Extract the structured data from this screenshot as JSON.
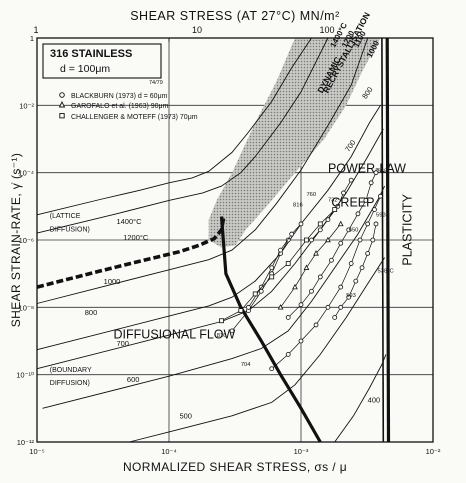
{
  "chart_data": {
    "type": "line",
    "title": "",
    "top_axis": {
      "label": "SHEAR STRESS (AT 27°C) MN/m²",
      "ticks": [
        "1",
        "10",
        "100"
      ]
    },
    "xlabel": "NORMALIZED SHEAR STRESS, σs / μ",
    "ylabel": "SHEAR STRAIN-RATE, γ̇ (s⁻¹)",
    "x_scale": "log",
    "y_scale": "log",
    "xlim": [
      1e-05,
      0.01
    ],
    "ylim": [
      1e-12,
      1
    ],
    "x_ticks": [
      {
        "value": 1e-05,
        "label": "10⁻⁵"
      },
      {
        "value": 0.0001,
        "label": "10⁻⁴"
      },
      {
        "value": 0.001,
        "label": "10⁻³"
      },
      {
        "value": 0.01,
        "label": "10⁻²"
      }
    ],
    "y_ticks": [
      {
        "value": 1,
        "label": "1"
      },
      {
        "value": 0.01,
        "label": "10⁻²"
      },
      {
        "value": 0.0001,
        "label": "10⁻⁴"
      },
      {
        "value": 1e-06,
        "label": "10⁻⁶"
      },
      {
        "value": 1e-08,
        "label": "10⁻⁸"
      },
      {
        "value": 1e-10,
        "label": "10⁻¹⁰"
      },
      {
        "value": 1e-12,
        "label": "10⁻¹²"
      }
    ],
    "material_box": {
      "name": "316 STAINLESS",
      "grain": "d = 100μm",
      "code": "74/79"
    },
    "legend": [
      {
        "symbol": "circle",
        "text": "BLACKBURN (1973) d = 60μm"
      },
      {
        "symbol": "triangle",
        "text": "GAROFALO et al. (1963) 90μm"
      },
      {
        "symbol": "square",
        "text": "CHALLENGER & MOTEFF (1973) 70μm"
      }
    ],
    "fields": [
      {
        "text": "POWER-LAW",
        "x": 0.0016,
        "y": 0.0001
      },
      {
        "text": "CREEP",
        "x": 0.0017,
        "y": 1e-05
      },
      {
        "text": "DIFFUSIONAL FLOW",
        "x": 3.8e-05,
        "y": 1.2e-09
      },
      {
        "text": "PLASTICITY",
        "x": 0.0069,
        "y": 2e-06
      },
      {
        "text": "DYNAMIC",
        "x": 0.00145,
        "y": 0.022
      },
      {
        "text": "RECRYSTALLISATION",
        "x": 0.0016,
        "y": 0.022
      }
    ],
    "regime_notes": [
      {
        "text": "(LATTICE",
        "x": 1.25e-05,
        "y": 4.5e-06
      },
      {
        "text": "DIFFUSION)",
        "x": 1.25e-05,
        "y": 1.8e-06
      },
      {
        "text": "(BOUNDARY",
        "x": 1.25e-05,
        "y": 1.2e-10
      },
      {
        "text": "DIFFUSION)",
        "x": 1.25e-05,
        "y": 5e-11
      }
    ],
    "isotherm_labels": [
      {
        "text": "1400°C",
        "x": 4e-05,
        "y": 3e-06
      },
      {
        "text": "1200°C",
        "x": 4.5e-05,
        "y": 1e-06
      },
      {
        "text": "1000",
        "x": 3.2e-05,
        "y": 5e-08
      },
      {
        "text": "800",
        "x": 2.3e-05,
        "y": 6e-09
      },
      {
        "text": "700",
        "x": 4e-05,
        "y": 7e-10
      },
      {
        "text": "600",
        "x": 4.8e-05,
        "y": 6e-11
      },
      {
        "text": "500",
        "x": 0.00012,
        "y": 5e-12
      },
      {
        "text": "400",
        "x": 0.0032,
        "y": 1.5e-11
      },
      {
        "text": "700",
        "x": 0.0023,
        "y": 0.0004
      },
      {
        "text": "800",
        "x": 0.0031,
        "y": 0.015
      },
      {
        "text": "1000",
        "x": 0.0034,
        "y": 0.25
      },
      {
        "text": "1100",
        "x": 0.0027,
        "y": 0.5
      },
      {
        "text": "1200",
        "x": 0.0022,
        "y": 0.5
      },
      {
        "text": "1400°C",
        "x": 0.0018,
        "y": 0.5
      }
    ],
    "point_labels": [
      {
        "text": "649",
        "x": 0.0038,
        "y": 0.0001
      },
      {
        "text": "593",
        "x": 0.0037,
        "y": 5e-06
      },
      {
        "text": "538°C",
        "x": 0.0038,
        "y": 1.1e-07
      },
      {
        "text": "593",
        "x": 0.0022,
        "y": 2e-08
      },
      {
        "text": "650",
        "x": 0.0023,
        "y": 1.8e-06
      },
      {
        "text": "732",
        "x": 0.0016,
        "y": 1.4e-05
      },
      {
        "text": "760",
        "x": 0.0011,
        "y": 2e-05
      },
      {
        "text": "816",
        "x": 0.00087,
        "y": 1e-05
      },
      {
        "text": "816",
        "x": 0.00023,
        "y": 1.3e-09
      },
      {
        "text": "704",
        "x": 0.00035,
        "y": 1.8e-10
      }
    ],
    "series": [
      {
        "style": "thin",
        "points": [
          [
            1e-05,
            5.6e-06
          ],
          [
            3e-05,
            1.6e-05
          ],
          [
            6e-05,
            3e-05
          ],
          [
            0.0001,
            5e-05
          ],
          [
            0.00015,
            7e-05
          ],
          [
            0.0002,
            0.00011
          ],
          [
            0.0003,
            0.0004
          ],
          [
            0.0004,
            0.0016
          ],
          [
            0.0006,
            0.013
          ],
          [
            0.00085,
            0.13
          ],
          [
            0.0012,
            1
          ]
        ]
      },
      {
        "style": "thin",
        "points": [
          [
            1e-05,
            1.6e-06
          ],
          [
            4e-05,
            6e-06
          ],
          [
            0.0001,
            1.5e-05
          ],
          [
            0.00018,
            2.5e-05
          ],
          [
            0.00025,
            4e-05
          ],
          [
            0.00035,
            0.0001
          ],
          [
            0.00045,
            0.0003
          ],
          [
            0.0007,
            0.003
          ],
          [
            0.001,
            0.025
          ],
          [
            0.0016,
            1
          ]
        ]
      },
      {
        "style": "thin",
        "points": [
          [
            1e-05,
            1.3e-08
          ],
          [
            0.0001,
            1.3e-07
          ],
          [
            0.0002,
            2.6e-07
          ],
          [
            0.0003,
            5e-07
          ],
          [
            0.00045,
            2e-06
          ],
          [
            0.00065,
            1.2e-05
          ],
          [
            0.001,
            0.00012
          ],
          [
            0.0016,
            0.0025
          ],
          [
            0.0024,
            0.04
          ],
          [
            0.0032,
            1
          ]
        ]
      },
      {
        "style": "thin",
        "points": [
          [
            1e-05,
            5.5e-10
          ],
          [
            0.0001,
            5.5e-09
          ],
          [
            0.0002,
            1.1e-08
          ],
          [
            0.0003,
            2e-08
          ],
          [
            0.00045,
            6e-08
          ],
          [
            0.0007,
            4e-07
          ],
          [
            0.001,
            3e-06
          ],
          [
            0.0016,
            3e-05
          ],
          [
            0.0024,
            0.0003
          ],
          [
            0.0033,
            0.003
          ],
          [
            0.004,
            0.01
          ]
        ]
      },
      {
        "style": "thin",
        "points": [
          [
            1e-05,
            1.5e-10
          ],
          [
            0.0001,
            1.5e-09
          ],
          [
            0.00025,
            3.8e-09
          ],
          [
            0.0004,
            8e-09
          ],
          [
            0.0006,
            3e-08
          ],
          [
            0.0009,
            2e-07
          ],
          [
            0.0014,
            2e-06
          ],
          [
            0.0022,
            2.5e-05
          ],
          [
            0.0032,
            0.0003
          ],
          [
            0.0042,
            0.002
          ]
        ]
      },
      {
        "style": "thin",
        "points": [
          [
            1.1e-05,
            1e-11
          ],
          [
            0.0001,
            9e-11
          ],
          [
            0.0003,
            3e-10
          ],
          [
            0.0005,
            6e-10
          ],
          [
            0.0008,
            2e-09
          ],
          [
            0.0012,
            1.5e-08
          ],
          [
            0.0018,
            1.5e-07
          ],
          [
            0.0027,
            1.5e-06
          ],
          [
            0.0038,
            1.5e-05
          ],
          [
            0.0043,
            4e-05
          ]
        ]
      },
      {
        "style": "thin",
        "points": [
          [
            5e-05,
            1e-12
          ],
          [
            0.0001,
            2e-12
          ],
          [
            0.0003,
            6e-12
          ],
          [
            0.0006,
            1.5e-11
          ],
          [
            0.0009,
            5e-11
          ],
          [
            0.0014,
            4e-10
          ],
          [
            0.0022,
            5e-09
          ],
          [
            0.0033,
            6e-08
          ],
          [
            0.0043,
            3e-07
          ]
        ]
      },
      {
        "style": "thin",
        "points": [
          [
            0.0018,
            1e-12
          ],
          [
            0.0025,
            6e-12
          ],
          [
            0.0033,
            4e-11
          ],
          [
            0.0041,
            2e-10
          ],
          [
            0.0044,
            4e-10
          ]
        ]
      },
      {
        "style": "bold",
        "points": [
          [
            1e-05,
            4e-08
          ],
          [
            3e-05,
            1.2e-07
          ],
          [
            7e-05,
            2.7e-07
          ],
          [
            0.00012,
            4.5e-07
          ],
          [
            0.00017,
            7e-07
          ],
          [
            0.00022,
            1.1e-06
          ],
          [
            0.00025,
            2e-06
          ],
          [
            0.00026,
            5e-06
          ]
        ]
      },
      {
        "style": "bold",
        "points": [
          [
            0.00025,
            5e-06
          ],
          [
            0.00027,
            1e-07
          ],
          [
            0.00035,
            1e-08
          ],
          [
            0.0005,
            1e-09
          ],
          [
            0.0007,
            1e-10
          ],
          [
            0.001,
            1e-11
          ],
          [
            0.0014,
            1e-12
          ]
        ]
      },
      {
        "style": "bold",
        "points": [
          [
            0.0045,
            1
          ],
          [
            0.0046,
            1e-12
          ]
        ]
      },
      {
        "style": "bold-thin",
        "points": [
          [
            0.0041,
            1
          ],
          [
            0.0042,
            1e-12
          ]
        ]
      }
    ],
    "scatter": [
      {
        "symbol": "circle",
        "points": [
          [
            0.0006,
            1.5e-10
          ],
          [
            0.0008,
            4e-10
          ],
          [
            0.001,
            1e-09
          ],
          [
            0.0013,
            3e-09
          ],
          [
            0.0016,
            1e-08
          ],
          [
            0.002,
            4e-08
          ],
          [
            0.0024,
            2e-07
          ],
          [
            0.0028,
            1e-06
          ],
          [
            0.0032,
            3e-06
          ],
          [
            0.0036,
            8e-06
          ],
          [
            0.004,
            2e-05
          ]
        ]
      },
      {
        "symbol": "circle",
        "points": [
          [
            0.0008,
            5e-09
          ],
          [
            0.001,
            1.2e-08
          ],
          [
            0.0012,
            3e-08
          ],
          [
            0.0014,
            8e-08
          ],
          [
            0.0017,
            2.5e-07
          ],
          [
            0.002,
            8e-07
          ],
          [
            0.0023,
            2e-06
          ],
          [
            0.0027,
            6e-06
          ],
          [
            0.0031,
            1.5e-05
          ],
          [
            0.0034,
            5e-05
          ],
          [
            0.0037,
            0.0001
          ]
        ]
      },
      {
        "symbol": "circle",
        "points": [
          [
            0.0012,
            1e-06
          ],
          [
            0.0014,
            2e-06
          ],
          [
            0.0016,
            4e-06
          ],
          [
            0.0019,
            1e-05
          ],
          [
            0.0021,
            2.5e-05
          ],
          [
            0.0024,
            6e-05
          ]
        ]
      },
      {
        "symbol": "circle",
        "points": [
          [
            0.0018,
            5e-09
          ],
          [
            0.002,
            1e-08
          ],
          [
            0.0023,
            2e-08
          ],
          [
            0.0026,
            6e-08
          ],
          [
            0.0029,
            1.5e-07
          ],
          [
            0.0032,
            4e-07
          ],
          [
            0.0035,
            1e-06
          ],
          [
            0.0037,
            3e-06
          ]
        ]
      },
      {
        "symbol": "circle",
        "points": [
          [
            0.0003,
            2e-09
          ],
          [
            0.0004,
            8e-09
          ],
          [
            0.0005,
            3e-08
          ],
          [
            0.0006,
            1e-07
          ],
          [
            0.0007,
            4e-07
          ],
          [
            0.0008,
            1e-06
          ]
        ]
      },
      {
        "symbol": "circle",
        "points": [
          [
            0.0004,
            1e-08
          ],
          [
            0.0005,
            4e-08
          ],
          [
            0.0006,
            1.5e-07
          ],
          [
            0.0007,
            5e-07
          ],
          [
            0.00085,
            1.5e-06
          ],
          [
            0.001,
            3e-06
          ]
        ]
      },
      {
        "symbol": "triangle",
        "points": [
          [
            0.0007,
            1e-08
          ],
          [
            0.0009,
            4e-08
          ],
          [
            0.0011,
            1.5e-07
          ],
          [
            0.0013,
            4e-07
          ],
          [
            0.0016,
            1e-06
          ],
          [
            0.002,
            3e-06
          ]
        ]
      },
      {
        "symbol": "square",
        "points": [
          [
            0.00025,
            4e-09
          ],
          [
            0.00035,
            8e-09
          ],
          [
            0.00045,
            2.5e-08
          ],
          [
            0.0006,
            8e-08
          ],
          [
            0.0008,
            2e-07
          ],
          [
            0.0011,
            1e-06
          ],
          [
            0.0014,
            3e-06
          ],
          [
            0.0018,
            8e-06
          ]
        ]
      }
    ],
    "shaded_region": {
      "left": [
        [
          0.0002,
          4e-06
        ],
        [
          0.00023,
          1.5e-05
        ],
        [
          0.0003,
          0.0001
        ],
        [
          0.00045,
          0.003
        ],
        [
          0.00065,
          0.05
        ],
        [
          0.0009,
          1
        ]
      ],
      "right": [
        [
          0.004,
          1
        ],
        [
          0.0029,
          0.1
        ],
        [
          0.0022,
          0.01
        ],
        [
          0.0015,
          0.001
        ],
        [
          0.0009,
          0.0001
        ],
        [
          0.00055,
          1e-05
        ],
        [
          0.00038,
          2e-06
        ],
        [
          0.00032,
          7e-07
        ],
        [
          0.00025,
          6e-07
        ],
        [
          0.0002,
          1e-06
        ]
      ]
    }
  }
}
